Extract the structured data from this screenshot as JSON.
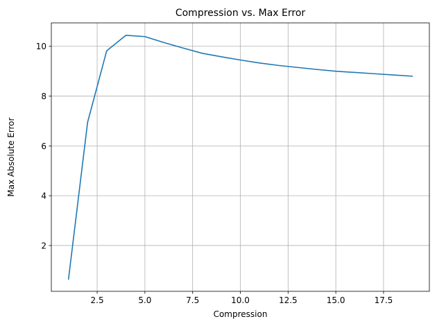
{
  "chart_data": {
    "type": "line",
    "title": "Compression vs. Max Error",
    "xlabel": "Compression",
    "ylabel": "Max Absolute Error",
    "xlim": [
      0.1,
      19.9
    ],
    "ylim": [
      0.16,
      10.94
    ],
    "xticks": [
      2.5,
      5.0,
      7.5,
      10.0,
      12.5,
      15.0,
      17.5
    ],
    "xtick_labels": [
      "2.5",
      "5.0",
      "7.5",
      "10.0",
      "12.5",
      "15.0",
      "17.5"
    ],
    "yticks": [
      2,
      4,
      6,
      8,
      10
    ],
    "ytick_labels": [
      "2",
      "4",
      "6",
      "8",
      "10"
    ],
    "grid": true,
    "legend": "none",
    "series": [
      {
        "color": "#1f77b4",
        "x": [
          1,
          2,
          3,
          4,
          5,
          6,
          7,
          8,
          9,
          10,
          11,
          12,
          13,
          14,
          15,
          16,
          17,
          18,
          19
        ],
        "y": [
          0.65,
          6.95,
          9.82,
          10.44,
          10.39,
          10.15,
          9.93,
          9.72,
          9.58,
          9.45,
          9.33,
          9.23,
          9.15,
          9.07,
          9.0,
          8.95,
          8.9,
          8.85,
          8.8
        ]
      }
    ]
  }
}
